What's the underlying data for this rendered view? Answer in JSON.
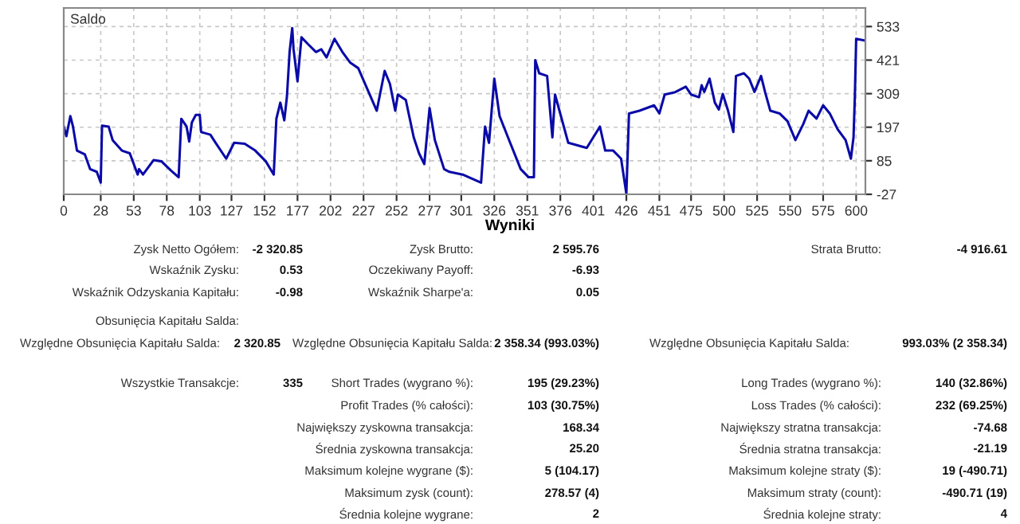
{
  "chart_data": [
    {
      "type": "line",
      "title": "Saldo",
      "series": [
        {
          "color": "#0a0aa8",
          "x": [
            0,
            2,
            5,
            7,
            10,
            16,
            20,
            25,
            28,
            29,
            34,
            37,
            44,
            50,
            56,
            57,
            60,
            68,
            74,
            81,
            87,
            89,
            93,
            95,
            97,
            100,
            103,
            104,
            111,
            115,
            123,
            129,
            137,
            145,
            153,
            159,
            161,
            164,
            167,
            169,
            171,
            173,
            174,
            177,
            180,
            185,
            191,
            195,
            199,
            205,
            211,
            217,
            223,
            237,
            243,
            247,
            251,
            253,
            259,
            265,
            269,
            273,
            277,
            281,
            288,
            292,
            302,
            316,
            319,
            322,
            326,
            330,
            338,
            346,
            352,
            356,
            357,
            360,
            366,
            370,
            372,
            382,
            396,
            406,
            410,
            416,
            422,
            426,
            428,
            436,
            447,
            451,
            455,
            463,
            471,
            475,
            481,
            483,
            485,
            489,
            493,
            496,
            499,
            503,
            507,
            509,
            515,
            519,
            523,
            528,
            531,
            535,
            542,
            548,
            554,
            560,
            564,
            570,
            575,
            580,
            586,
            592,
            596,
            598,
            599,
            600,
            606
          ],
          "values": [
            199,
            167,
            234,
            199,
            119,
            106,
            57,
            48,
            12,
            202,
            199,
            154,
            119,
            110,
            39,
            57,
            39,
            87,
            83,
            53,
            30,
            225,
            199,
            149,
            213,
            238,
            238,
            181,
            172,
            145,
            92,
            145,
            142,
            119,
            83,
            39,
            225,
            279,
            220,
            300,
            448,
            528,
            457,
            350,
            497,
            474,
            448,
            457,
            430,
            492,
            448,
            412,
            394,
            252,
            385,
            341,
            252,
            306,
            288,
            163,
            110,
            74,
            261,
            154,
            57,
            48,
            39,
            12,
            199,
            145,
            359,
            234,
            145,
            57,
            30,
            30,
            421,
            377,
            368,
            163,
            306,
            145,
            128,
            199,
            119,
            119,
            92,
            -25,
            243,
            252,
            270,
            243,
            306,
            314,
            332,
            306,
            297,
            337,
            315,
            359,
            279,
            256,
            308,
            252,
            181,
            368,
            377,
            359,
            315,
            368,
            315,
            252,
            243,
            217,
            154,
            208,
            252,
            226,
            270,
            243,
            190,
            154,
            92,
            163,
            297,
            492,
            487
          ]
        }
      ],
      "xlim": [
        0,
        607
      ],
      "ylim": [
        -27,
        595
      ],
      "xticks": [
        0,
        28,
        53,
        78,
        103,
        127,
        152,
        177,
        202,
        227,
        252,
        277,
        301,
        326,
        351,
        376,
        401,
        426,
        451,
        475,
        500,
        525,
        550,
        575,
        600
      ],
      "yticks": [
        -27,
        85,
        197,
        309,
        421,
        533
      ],
      "grid": true,
      "marker": "none",
      "line_style": "solid",
      "legend": false
    },
    {
      "type": "other",
      "title": "Wyniki",
      "annotations": [
        "Zysk Netto Ogółem:",
        "-2 320.85",
        "Zysk Brutto:",
        "2 595.76",
        "Strata Brutto:",
        "-4 916.61",
        "Wskaźnik Zysku:",
        "0.53",
        "Oczekiwany Payoff:",
        "-6.93",
        "Wskaźnik Odzyskania Kapitału:",
        "-0.98",
        "Wskaźnik Sharpe'a:",
        "0.05",
        "Obsunięcia Kapitału Salda:",
        "Względne Obsunięcia Kapitału Salda:",
        "2 320.85",
        "Względne Obsunięcia Kapitału Salda:",
        "2 358.34 (993.03%)",
        "Względne Obsunięcia Kapitału Salda:",
        "993.03% (2 358.34)",
        "Wszystkie Transakcje:",
        "335",
        "Short Trades (wygrano %):",
        "195 (29.23%)",
        "Long Trades (wygrano %):",
        "140 (32.86%)",
        "Profit Trades (% całości):",
        "103 (30.75%)",
        "Loss Trades (% całości):",
        "232 (69.25%)",
        "Największy zyskowna transakcja:",
        "168.34",
        "Największy stratna transakcja:",
        "-74.68",
        "Średnia zyskowna transakcja:",
        "25.20",
        "Średnia stratna transakcja:",
        "-21.19",
        "Maksimum kolejne wygrane ($):",
        "5 (104.17)",
        "Maksimum kolejne straty ($):",
        "19 (-490.71)",
        "Maksimum zysk (count):",
        "278.57 (4)",
        "Maksimum straty (count):",
        "-490.71 (19)",
        "Średnia kolejne wygrane:",
        "2",
        "Średnia kolejne straty:",
        "4"
      ]
    }
  ]
}
